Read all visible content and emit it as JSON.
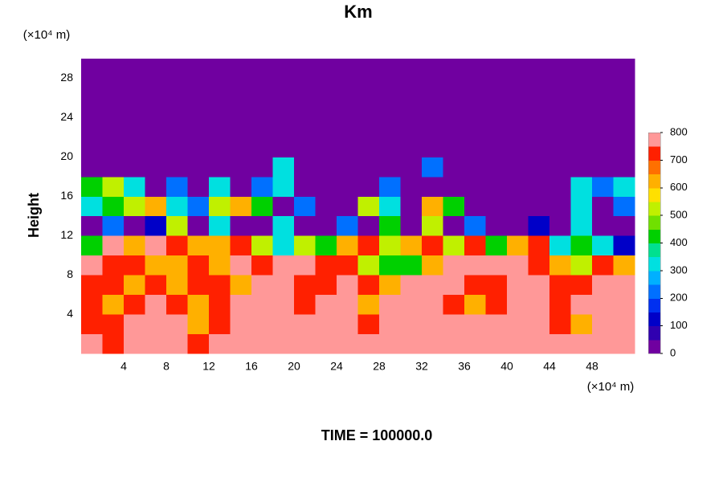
{
  "chart_data": {
    "type": "heatmap",
    "title": "Km",
    "ylabel": "Height",
    "yunit": "(×10⁴ m)",
    "xunit": "(×10⁴ m)",
    "footer": "TIME = 100000.0",
    "xlim": [
      0,
      52
    ],
    "ylim": [
      0,
      30
    ],
    "xticks": [
      4,
      8,
      12,
      16,
      20,
      24,
      28,
      32,
      36,
      40,
      44,
      48
    ],
    "yticks": [
      4,
      8,
      12,
      16,
      20,
      24,
      28
    ],
    "x": [
      1,
      3,
      5,
      7,
      9,
      11,
      13,
      15,
      17,
      19,
      21,
      23,
      25,
      27,
      29,
      31,
      33,
      35,
      37,
      39,
      41,
      43,
      45,
      47,
      49,
      51
    ],
    "y": [
      1,
      3,
      5,
      7,
      9,
      11,
      13,
      15,
      17,
      19,
      21,
      23,
      25,
      27,
      29
    ],
    "z": [
      [
        800,
        700,
        800,
        800,
        800,
        700,
        800,
        800,
        800,
        800,
        800,
        800,
        800,
        800,
        800,
        800,
        800,
        800,
        800,
        800,
        800,
        800,
        800,
        800,
        800,
        800
      ],
      [
        700,
        700,
        800,
        800,
        800,
        600,
        700,
        800,
        800,
        800,
        800,
        800,
        800,
        700,
        800,
        800,
        800,
        800,
        800,
        800,
        800,
        800,
        700,
        600,
        800,
        800
      ],
      [
        700,
        600,
        700,
        800,
        700,
        600,
        700,
        800,
        800,
        800,
        700,
        800,
        800,
        600,
        800,
        800,
        800,
        700,
        600,
        700,
        800,
        800,
        700,
        800,
        800,
        800
      ],
      [
        700,
        700,
        600,
        700,
        600,
        700,
        700,
        600,
        800,
        800,
        700,
        700,
        800,
        700,
        600,
        800,
        800,
        800,
        700,
        700,
        800,
        800,
        700,
        700,
        800,
        800
      ],
      [
        800,
        700,
        700,
        600,
        600,
        700,
        600,
        800,
        700,
        800,
        800,
        700,
        700,
        500,
        400,
        400,
        600,
        800,
        800,
        800,
        800,
        700,
        600,
        500,
        700,
        600
      ],
      [
        400,
        800,
        600,
        800,
        700,
        600,
        600,
        700,
        500,
        300,
        500,
        400,
        600,
        700,
        500,
        600,
        700,
        500,
        700,
        400,
        600,
        700,
        300,
        400,
        300,
        100
      ],
      [
        0,
        200,
        0,
        100,
        500,
        0,
        300,
        0,
        0,
        300,
        0,
        0,
        200,
        0,
        400,
        0,
        500,
        0,
        200,
        0,
        0,
        100,
        0,
        300,
        0,
        0
      ],
      [
        300,
        400,
        500,
        600,
        300,
        200,
        500,
        600,
        400,
        0,
        200,
        0,
        0,
        500,
        300,
        0,
        600,
        400,
        0,
        0,
        0,
        0,
        0,
        300,
        0,
        200
      ],
      [
        400,
        500,
        300,
        0,
        200,
        0,
        300,
        0,
        200,
        300,
        0,
        0,
        0,
        0,
        200,
        0,
        0,
        0,
        0,
        0,
        0,
        0,
        0,
        300,
        200,
        300
      ],
      [
        0,
        0,
        0,
        0,
        0,
        0,
        0,
        0,
        0,
        300,
        0,
        0,
        0,
        0,
        0,
        0,
        200,
        0,
        0,
        0,
        0,
        0,
        0,
        0,
        0,
        0
      ],
      [
        0,
        0,
        0,
        0,
        0,
        0,
        0,
        0,
        0,
        0,
        0,
        0,
        0,
        0,
        0,
        0,
        0,
        0,
        0,
        0,
        0,
        0,
        0,
        0,
        0,
        0
      ],
      [
        0,
        0,
        0,
        0,
        0,
        0,
        0,
        0,
        0,
        0,
        0,
        0,
        0,
        0,
        0,
        0,
        0,
        0,
        0,
        0,
        0,
        0,
        0,
        0,
        0,
        0
      ],
      [
        0,
        0,
        0,
        0,
        0,
        0,
        0,
        0,
        0,
        0,
        0,
        0,
        0,
        0,
        0,
        0,
        0,
        0,
        0,
        0,
        0,
        0,
        0,
        0,
        0,
        0
      ],
      [
        0,
        0,
        0,
        0,
        0,
        0,
        0,
        0,
        0,
        0,
        0,
        0,
        0,
        0,
        0,
        0,
        0,
        0,
        0,
        0,
        0,
        0,
        0,
        0,
        0,
        0
      ],
      [
        0,
        0,
        0,
        0,
        0,
        0,
        0,
        0,
        0,
        0,
        0,
        0,
        0,
        0,
        0,
        0,
        0,
        0,
        0,
        0,
        0,
        0,
        0,
        0,
        0,
        0
      ]
    ],
    "zlim": [
      0,
      800
    ],
    "zticks": [
      0,
      100,
      200,
      300,
      400,
      500,
      600,
      700,
      800
    ],
    "colors": [
      "#7000a0",
      "#3000b0",
      "#0000c8",
      "#0030f0",
      "#0070ff",
      "#00b0ff",
      "#00e0e0",
      "#00e090",
      "#00d000",
      "#70e000",
      "#c0f000",
      "#ffe000",
      "#ffb000",
      "#ff7000",
      "#ff2000",
      "#ff9898"
    ]
  }
}
